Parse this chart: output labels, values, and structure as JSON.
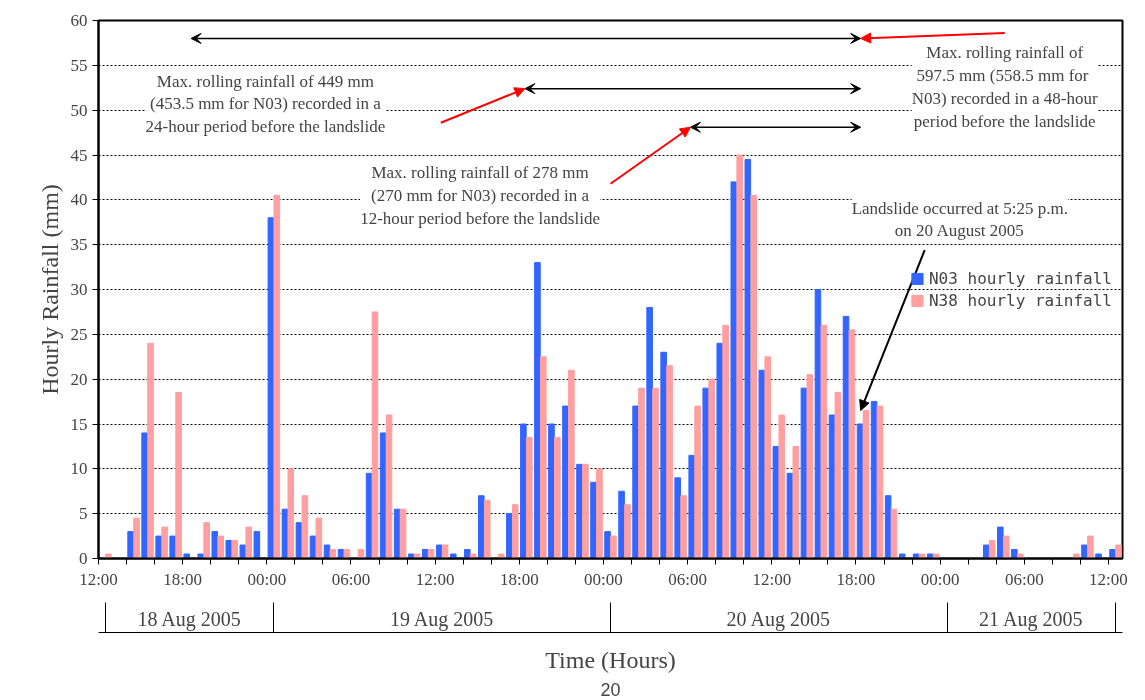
{
  "chart_data": {
    "type": "bar",
    "xlabel": "Time (Hours)",
    "ylabel": "Hourly Rainfall (mm)",
    "x": [
      "2005-08-18T12:30",
      "2005-08-18T13:30",
      "2005-08-18T14:30",
      "2005-08-18T15:30",
      "2005-08-18T16:30",
      "2005-08-18T17:30",
      "2005-08-18T18:30",
      "2005-08-18T19:30",
      "2005-08-18T20:30",
      "2005-08-18T21:30",
      "2005-08-18T22:30",
      "2005-08-18T23:30",
      "2005-08-19T00:30",
      "2005-08-19T01:30",
      "2005-08-19T02:30",
      "2005-08-19T03:30",
      "2005-08-19T04:30",
      "2005-08-19T05:30",
      "2005-08-19T06:30",
      "2005-08-19T07:30",
      "2005-08-19T08:30",
      "2005-08-19T09:30",
      "2005-08-19T10:30",
      "2005-08-19T11:30",
      "2005-08-19T12:30",
      "2005-08-19T13:30",
      "2005-08-19T14:30",
      "2005-08-19T15:30",
      "2005-08-19T16:30",
      "2005-08-19T17:30",
      "2005-08-19T18:30",
      "2005-08-19T19:30",
      "2005-08-19T20:30",
      "2005-08-19T21:30",
      "2005-08-19T22:30",
      "2005-08-19T23:30",
      "2005-08-20T00:30",
      "2005-08-20T01:30",
      "2005-08-20T02:30",
      "2005-08-20T03:30",
      "2005-08-20T04:30",
      "2005-08-20T05:30",
      "2005-08-20T06:30",
      "2005-08-20T07:30",
      "2005-08-20T08:30",
      "2005-08-20T09:30",
      "2005-08-20T10:30",
      "2005-08-20T11:30",
      "2005-08-20T12:30",
      "2005-08-20T13:30",
      "2005-08-20T14:30",
      "2005-08-20T15:30",
      "2005-08-20T16:30",
      "2005-08-20T17:30",
      "2005-08-20T18:30",
      "2005-08-20T19:30",
      "2005-08-20T20:30",
      "2005-08-20T21:30",
      "2005-08-20T22:30",
      "2005-08-20T23:30",
      "2005-08-21T00:30",
      "2005-08-21T01:30",
      "2005-08-21T02:30",
      "2005-08-21T03:30",
      "2005-08-21T04:30",
      "2005-08-21T05:30",
      "2005-08-21T06:30",
      "2005-08-21T07:30",
      "2005-08-21T08:30",
      "2005-08-21T09:30",
      "2005-08-21T10:30",
      "2005-08-21T11:30",
      "2005-08-21T12:30"
    ],
    "series": [
      {
        "name": "N03 hourly rainfall",
        "color": "#3366ff",
        "values": [
          0,
          0,
          3,
          14,
          2.5,
          2.5,
          0.5,
          0.5,
          3,
          2,
          1.5,
          3,
          38,
          5.5,
          4,
          2.5,
          1.5,
          1,
          0,
          9.5,
          14,
          5.5,
          0.5,
          1,
          1.5,
          0.5,
          1,
          7,
          0,
          5,
          15,
          33,
          15,
          17,
          10.5,
          8.5,
          3,
          7.5,
          17,
          28,
          23,
          9,
          11.5,
          19,
          24,
          42,
          44.5,
          21,
          12.5,
          9.5,
          19,
          30,
          16,
          27,
          15,
          17.5,
          7,
          0.5,
          0.5,
          0.5,
          0,
          0,
          0,
          1.5,
          3.5,
          1,
          0,
          0,
          0,
          0,
          1.5,
          0.5,
          1
        ]
      },
      {
        "name": "N38 hourly rainfall",
        "color": "#ff9f9f",
        "values": [
          0.5,
          0,
          4.5,
          24,
          3.5,
          18.5,
          0,
          4,
          2.5,
          2,
          3.5,
          0,
          40.5,
          10,
          7,
          4.5,
          1,
          1,
          1,
          27.5,
          16,
          5.5,
          0.5,
          1,
          1.5,
          0,
          0.5,
          6.5,
          0.5,
          6,
          13.5,
          22.5,
          13.5,
          21,
          10.5,
          10,
          2.5,
          6,
          19,
          19,
          21.5,
          7,
          17,
          20,
          26,
          45,
          40.5,
          22.5,
          16,
          12.5,
          20.5,
          26,
          18.5,
          25.5,
          16.5,
          17,
          5.5,
          0,
          0.5,
          0.5,
          0,
          0,
          0,
          2,
          2.5,
          0.5,
          0,
          0,
          0,
          0.5,
          2.5,
          0,
          1.5
        ]
      }
    ],
    "xlim": [
      "2005-08-18T12:00",
      "2005-08-21T13:00"
    ],
    "xticks": [
      {
        "value": "2005-08-18T12:00",
        "label": "12:00"
      },
      {
        "value": "2005-08-18T14:00",
        "label": null
      },
      {
        "value": "2005-08-18T16:00",
        "label": null
      },
      {
        "value": "2005-08-18T18:00",
        "label": "18:00"
      },
      {
        "value": "2005-08-18T20:00",
        "label": null
      },
      {
        "value": "2005-08-18T22:00",
        "label": null
      },
      {
        "value": "2005-08-19T00:00",
        "label": "00:00"
      },
      {
        "value": "2005-08-19T02:00",
        "label": null
      },
      {
        "value": "2005-08-19T04:00",
        "label": null
      },
      {
        "value": "2005-08-19T06:00",
        "label": "06:00"
      },
      {
        "value": "2005-08-19T08:00",
        "label": null
      },
      {
        "value": "2005-08-19T10:00",
        "label": null
      },
      {
        "value": "2005-08-19T12:00",
        "label": "12:00"
      },
      {
        "value": "2005-08-19T14:00",
        "label": null
      },
      {
        "value": "2005-08-19T16:00",
        "label": null
      },
      {
        "value": "2005-08-19T18:00",
        "label": "18:00"
      },
      {
        "value": "2005-08-19T20:00",
        "label": null
      },
      {
        "value": "2005-08-19T22:00",
        "label": null
      },
      {
        "value": "2005-08-20T00:00",
        "label": "00:00"
      },
      {
        "value": "2005-08-20T02:00",
        "label": null
      },
      {
        "value": "2005-08-20T04:00",
        "label": null
      },
      {
        "value": "2005-08-20T06:00",
        "label": "06:00"
      },
      {
        "value": "2005-08-20T08:00",
        "label": null
      },
      {
        "value": "2005-08-20T10:00",
        "label": null
      },
      {
        "value": "2005-08-20T12:00",
        "label": "12:00"
      },
      {
        "value": "2005-08-20T14:00",
        "label": null
      },
      {
        "value": "2005-08-20T16:00",
        "label": null
      },
      {
        "value": "2005-08-20T18:00",
        "label": "18:00"
      },
      {
        "value": "2005-08-20T20:00",
        "label": null
      },
      {
        "value": "2005-08-20T22:00",
        "label": null
      },
      {
        "value": "2005-08-21T00:00",
        "label": "00:00"
      },
      {
        "value": "2005-08-21T02:00",
        "label": null
      },
      {
        "value": "2005-08-21T04:00",
        "label": null
      },
      {
        "value": "2005-08-21T06:00",
        "label": "06:00"
      },
      {
        "value": "2005-08-21T08:00",
        "label": null
      },
      {
        "value": "2005-08-21T10:00",
        "label": null
      },
      {
        "value": "2005-08-21T12:00",
        "label": "12:00"
      }
    ],
    "ylim": [
      0,
      60
    ],
    "yticks": [
      0,
      5,
      10,
      15,
      20,
      25,
      30,
      35,
      40,
      45,
      50,
      55,
      60
    ],
    "grid": "y",
    "legend": "right",
    "annotations": [
      "Max. rolling rainfall of 449 mm\n(453.5 mm for N03) recorded in a\n24-hour period before the landslide",
      "Max. rolling rainfall of 278 mm\n(270 mm for N03) recorded in a\n12-hour period before the landslide",
      "Max. rolling rainfall of\n597.5 mm (558.5  mm for\nN03) recorded in a 48-hour\nperiod before the landslide",
      {
        "text": "Landslide occurred at 5:25 p.m.\non 20 August 2005",
        "x": "2005-08-20T18:20",
        "y": 16.5
      },
      "18 Aug 2005",
      "19 Aug 2005",
      "20 Aug 2005",
      "21 Aug 2005",
      "20"
    ]
  }
}
